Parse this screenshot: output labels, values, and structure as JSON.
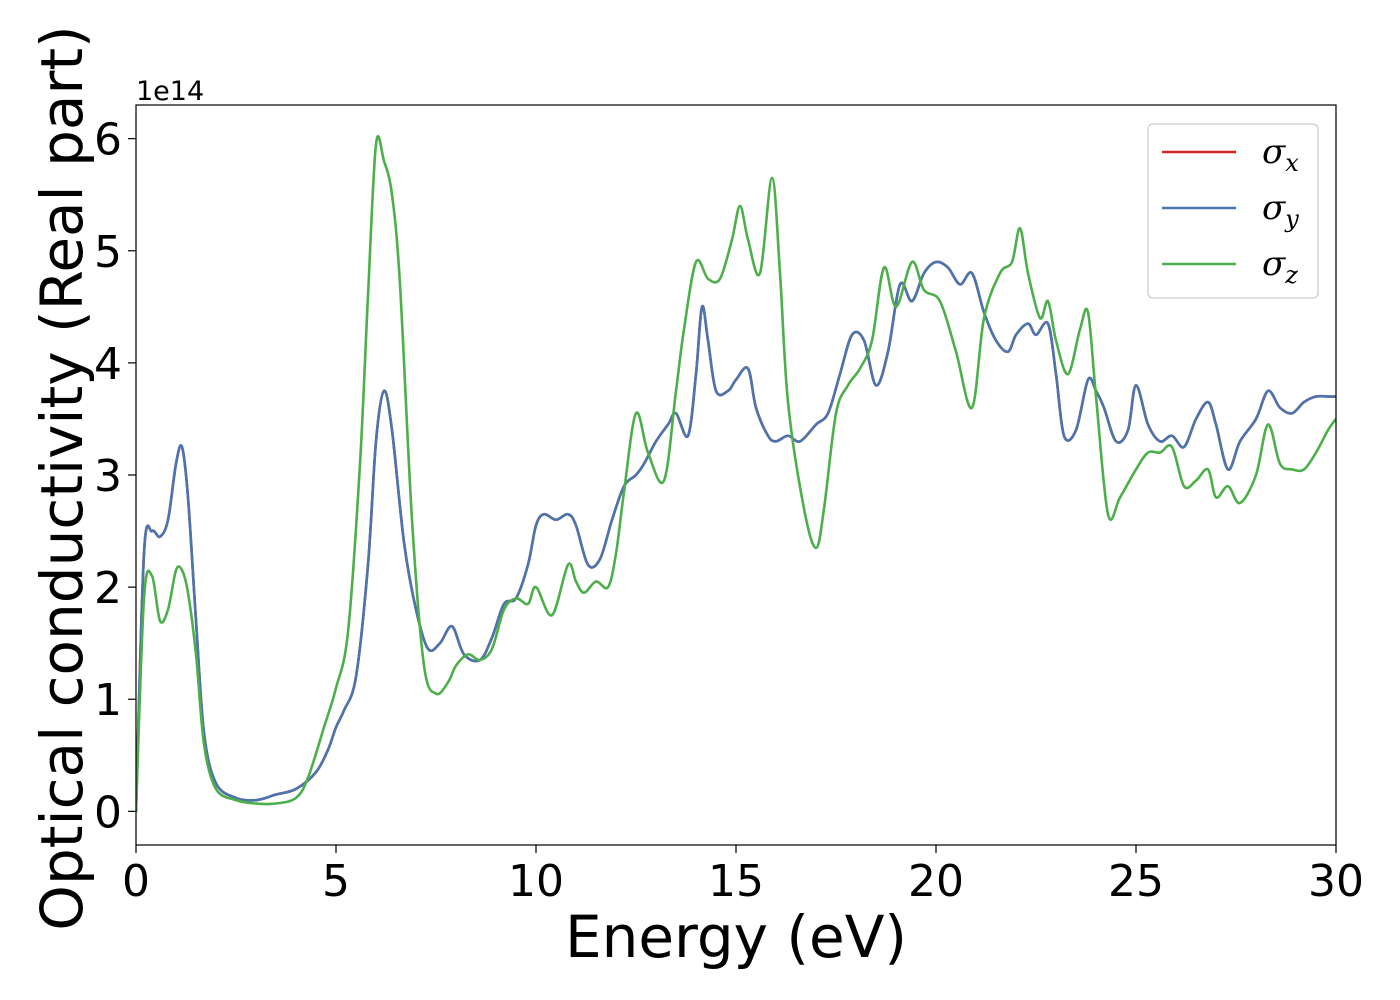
{
  "chart_data": {
    "type": "line",
    "title": "",
    "xlabel": "Energy (eV)",
    "ylabel": "Optical conductivity (Real part)",
    "y_offset_label": "1e14",
    "xlim": [
      0,
      30
    ],
    "ylim": [
      -0.3,
      6.3
    ],
    "xticks": [
      0,
      5,
      10,
      15,
      20,
      25,
      30
    ],
    "xtick_labels": [
      "0",
      "5",
      "10",
      "15",
      "20",
      "25",
      "30"
    ],
    "yticks": [
      0,
      1,
      2,
      3,
      4,
      5,
      6
    ],
    "ytick_labels": [
      "0",
      "1",
      "2",
      "3",
      "4",
      "5",
      "6"
    ],
    "grid": false,
    "legend_position": "top-right",
    "series": [
      {
        "name": "σx",
        "label_base": "σ",
        "label_sub": "x",
        "color": "#d62728",
        "note_hidden_under": "σy",
        "x": [
          0,
          0.2,
          0.4,
          0.6,
          0.8,
          1.0,
          1.15,
          1.3,
          1.5,
          1.7,
          2.0,
          2.5,
          3.0,
          3.5,
          4.0,
          4.5,
          4.8,
          5.0,
          5.2,
          5.5,
          5.8,
          6.0,
          6.2,
          6.4,
          6.7,
          7.0,
          7.3,
          7.6,
          7.9,
          8.2,
          8.6,
          8.9,
          9.2,
          9.5,
          9.8,
          10.0,
          10.2,
          10.5,
          10.8,
          11.0,
          11.3,
          11.6,
          11.9,
          12.2,
          12.5,
          12.7,
          13.0,
          13.3,
          13.5,
          13.8,
          14.0,
          14.15,
          14.3,
          14.5,
          14.8,
          15.0,
          15.3,
          15.5,
          15.8,
          16.0,
          16.3,
          16.6,
          17.0,
          17.3,
          17.6,
          17.9,
          18.2,
          18.5,
          18.8,
          19.1,
          19.4,
          19.7,
          20.0,
          20.3,
          20.6,
          20.9,
          21.2,
          21.5,
          21.8,
          22.0,
          22.3,
          22.5,
          22.8,
          23.0,
          23.2,
          23.5,
          23.8,
          24.0,
          24.2,
          24.5,
          24.8,
          25.0,
          25.3,
          25.6,
          25.9,
          26.2,
          26.5,
          26.8,
          27.0,
          27.3,
          27.6,
          28.0,
          28.3,
          28.6,
          28.9,
          29.2,
          29.5,
          29.8,
          30.0
        ],
        "y": [
          0.0,
          2.3,
          2.5,
          2.45,
          2.6,
          3.1,
          3.25,
          2.8,
          1.7,
          0.7,
          0.25,
          0.12,
          0.1,
          0.15,
          0.2,
          0.35,
          0.55,
          0.75,
          0.9,
          1.2,
          2.2,
          3.3,
          3.75,
          3.4,
          2.4,
          1.8,
          1.45,
          1.5,
          1.65,
          1.4,
          1.35,
          1.55,
          1.85,
          1.9,
          2.2,
          2.55,
          2.65,
          2.6,
          2.65,
          2.55,
          2.2,
          2.25,
          2.6,
          2.9,
          3.0,
          3.1,
          3.3,
          3.45,
          3.55,
          3.35,
          3.9,
          4.5,
          4.2,
          3.75,
          3.75,
          3.85,
          3.95,
          3.6,
          3.35,
          3.3,
          3.35,
          3.3,
          3.45,
          3.55,
          3.9,
          4.25,
          4.2,
          3.8,
          4.1,
          4.7,
          4.55,
          4.8,
          4.9,
          4.85,
          4.7,
          4.8,
          4.45,
          4.2,
          4.1,
          4.25,
          4.35,
          4.25,
          4.35,
          3.9,
          3.35,
          3.4,
          3.85,
          3.75,
          3.6,
          3.3,
          3.4,
          3.8,
          3.45,
          3.3,
          3.35,
          3.25,
          3.5,
          3.65,
          3.45,
          3.05,
          3.3,
          3.5,
          3.75,
          3.6,
          3.55,
          3.65,
          3.7,
          3.7,
          3.7
        ]
      },
      {
        "name": "σy",
        "label_base": "σ",
        "label_sub": "y",
        "color": "#4a76b0",
        "x": [
          0,
          0.2,
          0.4,
          0.6,
          0.8,
          1.0,
          1.15,
          1.3,
          1.5,
          1.7,
          2.0,
          2.5,
          3.0,
          3.5,
          4.0,
          4.5,
          4.8,
          5.0,
          5.2,
          5.5,
          5.8,
          6.0,
          6.2,
          6.4,
          6.7,
          7.0,
          7.3,
          7.6,
          7.9,
          8.2,
          8.6,
          8.9,
          9.2,
          9.5,
          9.8,
          10.0,
          10.2,
          10.5,
          10.8,
          11.0,
          11.3,
          11.6,
          11.9,
          12.2,
          12.5,
          12.7,
          13.0,
          13.3,
          13.5,
          13.8,
          14.0,
          14.15,
          14.3,
          14.5,
          14.8,
          15.0,
          15.3,
          15.5,
          15.8,
          16.0,
          16.3,
          16.6,
          17.0,
          17.3,
          17.6,
          17.9,
          18.2,
          18.5,
          18.8,
          19.1,
          19.4,
          19.7,
          20.0,
          20.3,
          20.6,
          20.9,
          21.2,
          21.5,
          21.8,
          22.0,
          22.3,
          22.5,
          22.8,
          23.0,
          23.2,
          23.5,
          23.8,
          24.0,
          24.2,
          24.5,
          24.8,
          25.0,
          25.3,
          25.6,
          25.9,
          26.2,
          26.5,
          26.8,
          27.0,
          27.3,
          27.6,
          28.0,
          28.3,
          28.6,
          28.9,
          29.2,
          29.5,
          29.8,
          30.0
        ],
        "y": [
          0.0,
          2.3,
          2.5,
          2.45,
          2.6,
          3.1,
          3.25,
          2.8,
          1.7,
          0.7,
          0.25,
          0.12,
          0.1,
          0.15,
          0.2,
          0.35,
          0.55,
          0.75,
          0.9,
          1.2,
          2.2,
          3.3,
          3.75,
          3.4,
          2.4,
          1.8,
          1.45,
          1.5,
          1.65,
          1.4,
          1.35,
          1.55,
          1.85,
          1.9,
          2.2,
          2.55,
          2.65,
          2.6,
          2.65,
          2.55,
          2.2,
          2.25,
          2.6,
          2.9,
          3.0,
          3.1,
          3.3,
          3.45,
          3.55,
          3.35,
          3.9,
          4.5,
          4.2,
          3.75,
          3.75,
          3.85,
          3.95,
          3.6,
          3.35,
          3.3,
          3.35,
          3.3,
          3.45,
          3.55,
          3.9,
          4.25,
          4.2,
          3.8,
          4.1,
          4.7,
          4.55,
          4.8,
          4.9,
          4.85,
          4.7,
          4.8,
          4.45,
          4.2,
          4.1,
          4.25,
          4.35,
          4.25,
          4.35,
          3.9,
          3.35,
          3.4,
          3.85,
          3.75,
          3.6,
          3.3,
          3.4,
          3.8,
          3.45,
          3.3,
          3.35,
          3.25,
          3.5,
          3.65,
          3.45,
          3.05,
          3.3,
          3.5,
          3.75,
          3.6,
          3.55,
          3.65,
          3.7,
          3.7,
          3.7
        ]
      },
      {
        "name": "σz",
        "label_base": "σ",
        "label_sub": "z",
        "color": "#4daf4a",
        "x": [
          0,
          0.2,
          0.4,
          0.6,
          0.8,
          1.0,
          1.15,
          1.3,
          1.5,
          1.7,
          2.0,
          2.5,
          3.0,
          3.5,
          4.0,
          4.3,
          4.7,
          5.0,
          5.3,
          5.6,
          5.8,
          6.0,
          6.2,
          6.4,
          6.6,
          6.9,
          7.2,
          7.5,
          7.8,
          8.0,
          8.3,
          8.6,
          8.9,
          9.2,
          9.5,
          9.8,
          10.0,
          10.4,
          10.8,
          11.0,
          11.2,
          11.5,
          11.8,
          12.0,
          12.2,
          12.5,
          12.8,
          13.2,
          13.5,
          13.7,
          14.0,
          14.3,
          14.6,
          14.9,
          15.1,
          15.3,
          15.6,
          15.9,
          16.1,
          16.3,
          16.7,
          17.0,
          17.2,
          17.5,
          17.8,
          18.1,
          18.4,
          18.7,
          19.0,
          19.4,
          19.7,
          20.1,
          20.5,
          20.9,
          21.2,
          21.6,
          21.9,
          22.1,
          22.3,
          22.6,
          22.8,
          23.0,
          23.3,
          23.6,
          23.8,
          24.0,
          24.3,
          24.6,
          25.0,
          25.3,
          25.6,
          25.9,
          26.2,
          26.5,
          26.8,
          27.0,
          27.3,
          27.6,
          28.0,
          28.3,
          28.6,
          28.9,
          29.2,
          29.5,
          29.8,
          30.0
        ],
        "y": [
          0.0,
          1.9,
          2.1,
          1.7,
          1.8,
          2.15,
          2.15,
          1.95,
          1.4,
          0.6,
          0.2,
          0.1,
          0.07,
          0.07,
          0.12,
          0.3,
          0.75,
          1.1,
          1.6,
          3.1,
          4.6,
          5.95,
          5.8,
          5.5,
          4.7,
          2.6,
          1.3,
          1.05,
          1.15,
          1.3,
          1.4,
          1.35,
          1.45,
          1.8,
          1.9,
          1.85,
          2.0,
          1.75,
          2.2,
          2.05,
          1.95,
          2.05,
          2.0,
          2.3,
          2.85,
          3.55,
          3.2,
          2.95,
          3.75,
          4.3,
          4.9,
          4.75,
          4.75,
          5.1,
          5.4,
          5.1,
          4.8,
          5.65,
          4.8,
          3.65,
          2.7,
          2.35,
          2.7,
          3.55,
          3.8,
          3.95,
          4.2,
          4.85,
          4.5,
          4.9,
          4.65,
          4.55,
          4.1,
          3.6,
          4.4,
          4.8,
          4.9,
          5.2,
          4.8,
          4.4,
          4.55,
          4.2,
          3.9,
          4.3,
          4.45,
          3.7,
          2.65,
          2.8,
          3.05,
          3.2,
          3.2,
          3.25,
          2.9,
          2.95,
          3.05,
          2.8,
          2.9,
          2.75,
          3.0,
          3.45,
          3.1,
          3.05,
          3.05,
          3.2,
          3.4,
          3.5
        ]
      }
    ]
  }
}
